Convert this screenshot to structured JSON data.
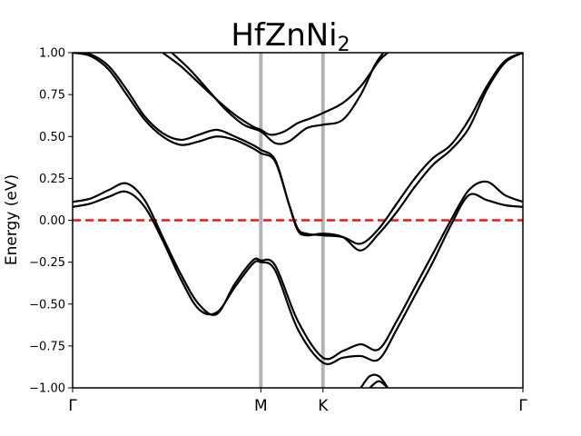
{
  "chart_data": {
    "type": "line",
    "title_main": "HfZnNi",
    "title_sub": "2",
    "xlabel": "",
    "ylabel": "Energy (eV)",
    "ylim": [
      -1.0,
      1.0
    ],
    "y_ticks": [
      "1.00",
      "0.75",
      "0.50",
      "0.25",
      "0.00",
      "−0.25",
      "−0.50",
      "−0.75",
      "−1.00"
    ],
    "y_tick_values": [
      1.0,
      0.75,
      0.5,
      0.25,
      0.0,
      -0.25,
      -0.5,
      -0.75,
      -1.0
    ],
    "xlim": [
      0,
      1
    ],
    "kpoints": [
      {
        "label": "Γ",
        "x": 0.0
      },
      {
        "label": "M",
        "x": 0.418
      },
      {
        "label": "K",
        "x": 0.556
      },
      {
        "label": "Γ",
        "x": 1.0
      }
    ],
    "fermi_level": 0.0,
    "colors": {
      "bands": "#000000",
      "fermi": "#e41a1c",
      "kpath": "#b3b3b3"
    },
    "series": [
      {
        "x": [
          0,
          0.04,
          0.08,
          0.12,
          0.16,
          0.2,
          0.24,
          0.28,
          0.32,
          0.36,
          0.4,
          0.418,
          0.45,
          0.5,
          0.556,
          0.6,
          0.64,
          0.68,
          0.72,
          0.76,
          0.8,
          0.84,
          0.88,
          0.92,
          0.96,
          1.0
        ],
        "values": [
          0.08,
          0.1,
          0.14,
          0.17,
          0.08,
          -0.12,
          -0.35,
          -0.53,
          -0.55,
          -0.4,
          -0.26,
          -0.25,
          -0.3,
          -0.65,
          -0.85,
          -0.82,
          -0.81,
          -0.83,
          -0.65,
          -0.45,
          -0.25,
          -0.03,
          0.15,
          0.12,
          0.09,
          0.08
        ]
      },
      {
        "x": [
          0,
          0.04,
          0.08,
          0.12,
          0.16,
          0.2,
          0.24,
          0.28,
          0.32,
          0.36,
          0.4,
          0.418,
          0.45,
          0.5,
          0.556,
          0.6,
          0.64,
          0.68,
          0.72,
          0.76,
          0.8,
          0.84,
          0.88,
          0.92,
          0.96,
          1.0
        ],
        "values": [
          0.11,
          0.13,
          0.18,
          0.22,
          0.12,
          -0.1,
          -0.32,
          -0.5,
          -0.56,
          -0.38,
          -0.24,
          -0.24,
          -0.27,
          -0.6,
          -0.82,
          -0.78,
          -0.74,
          -0.77,
          -0.6,
          -0.4,
          -0.2,
          0.0,
          0.18,
          0.23,
          0.15,
          0.11
        ]
      },
      {
        "x": [
          0,
          0.04,
          0.08,
          0.12,
          0.16,
          0.2,
          0.24,
          0.28,
          0.32,
          0.36,
          0.4,
          0.418,
          0.45,
          0.48,
          0.5,
          0.52,
          0.556,
          0.6,
          0.64,
          0.68,
          0.72,
          0.76,
          0.8,
          0.84,
          0.88,
          0.92,
          0.96,
          1.0
        ],
        "values": [
          1.0,
          0.98,
          0.9,
          0.75,
          0.6,
          0.5,
          0.45,
          0.47,
          0.5,
          0.48,
          0.43,
          0.4,
          0.35,
          0.1,
          -0.05,
          -0.08,
          -0.09,
          -0.1,
          -0.14,
          -0.05,
          0.1,
          0.25,
          0.37,
          0.45,
          0.6,
          0.8,
          0.95,
          1.0
        ]
      },
      {
        "x": [
          0,
          0.04,
          0.08,
          0.12,
          0.16,
          0.2,
          0.24,
          0.28,
          0.32,
          0.36,
          0.4,
          0.418,
          0.45,
          0.48,
          0.5,
          0.52,
          0.556,
          0.6,
          0.64,
          0.68,
          0.72,
          0.76,
          0.8,
          0.84,
          0.88,
          0.92,
          0.96,
          1.0
        ],
        "values": [
          1.0,
          0.99,
          0.92,
          0.78,
          0.62,
          0.52,
          0.48,
          0.51,
          0.54,
          0.5,
          0.45,
          0.42,
          0.36,
          0.1,
          -0.06,
          -0.09,
          -0.08,
          -0.1,
          -0.18,
          -0.08,
          0.05,
          0.2,
          0.33,
          0.42,
          0.55,
          0.78,
          0.94,
          1.0
        ]
      },
      {
        "x": [
          0.2,
          0.24,
          0.28,
          0.32,
          0.36,
          0.4,
          0.418,
          0.44,
          0.47,
          0.5,
          0.53,
          0.556,
          0.6,
          0.64,
          0.68,
          0.7
        ],
        "values": [
          1.0,
          0.92,
          0.82,
          0.72,
          0.63,
          0.56,
          0.54,
          0.51,
          0.53,
          0.58,
          0.61,
          0.64,
          0.7,
          0.8,
          0.95,
          1.0
        ]
      },
      {
        "x": [
          0.22,
          0.26,
          0.3,
          0.34,
          0.38,
          0.418,
          0.45,
          0.48,
          0.52,
          0.556,
          0.6,
          0.64,
          0.67,
          0.69
        ],
        "values": [
          1.0,
          0.9,
          0.78,
          0.66,
          0.57,
          0.53,
          0.46,
          0.47,
          0.55,
          0.57,
          0.6,
          0.75,
          0.92,
          1.0
        ]
      },
      {
        "x": [
          0.64,
          0.66,
          0.68,
          0.7
        ],
        "values": [
          -1.0,
          -0.93,
          -0.93,
          -1.0
        ]
      },
      {
        "x": [
          0.66,
          0.68,
          0.7
        ],
        "values": [
          -1.0,
          -0.96,
          -1.0
        ]
      }
    ]
  }
}
